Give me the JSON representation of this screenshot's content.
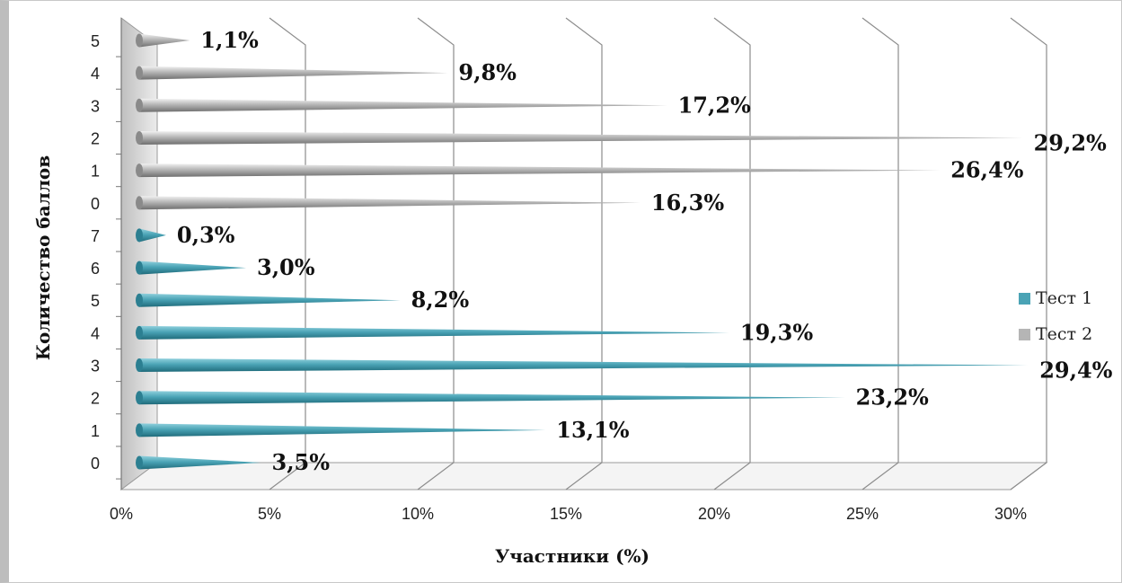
{
  "chart_data": {
    "type": "bar",
    "orientation": "horizontal",
    "style": "3d-cone",
    "xlabel": "Участники (%)",
    "ylabel": "Количество баллов",
    "xlim": [
      0,
      30
    ],
    "x_ticks": [
      "0%",
      "5%",
      "10%",
      "15%",
      "20%",
      "25%",
      "30%"
    ],
    "grid": true,
    "legend_position": "right",
    "series": [
      {
        "name": "Тест 1",
        "color": "#4aa3b5",
        "categories": [
          "0",
          "1",
          "2",
          "3",
          "4",
          "5",
          "6",
          "7"
        ],
        "values": [
          3.5,
          13.1,
          23.2,
          29.4,
          19.3,
          8.2,
          3.0,
          0.3
        ],
        "labels": [
          "3,5%",
          "13,1%",
          "23,2%",
          "29,4%",
          "19,3%",
          "8,2%",
          "3,0%",
          "0,3%"
        ]
      },
      {
        "name": "Тест 2",
        "color": "#b5b5b5",
        "categories": [
          "0",
          "1",
          "2",
          "3",
          "4",
          "5"
        ],
        "values": [
          16.3,
          26.4,
          29.2,
          17.2,
          9.8,
          1.1
        ],
        "labels": [
          "16,3%",
          "26,4%",
          "29,2%",
          "17,2%",
          "9,8%",
          "1,1%"
        ]
      }
    ]
  }
}
